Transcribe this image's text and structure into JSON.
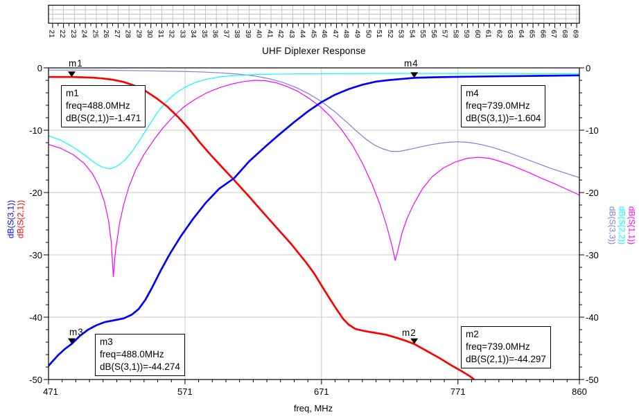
{
  "window": {
    "title": "UHF Diplexer Response"
  },
  "channel_ruler": {
    "channels": [
      "21",
      "22",
      "23",
      "24",
      "25",
      "26",
      "27",
      "28",
      "29",
      "30",
      "31",
      "32",
      "33",
      "34",
      "35",
      "36",
      "37",
      "38",
      "39",
      "40",
      "41",
      "42",
      "43",
      "44",
      "45",
      "46",
      "47",
      "48",
      "49",
      "50",
      "51",
      "52",
      "53",
      "54",
      "55",
      "56",
      "57",
      "58",
      "59",
      "60",
      "61",
      "62",
      "63",
      "64",
      "65",
      "66",
      "67",
      "68",
      "69"
    ]
  },
  "chart_data": {
    "type": "line",
    "title": "UHF Diplexer Response",
    "xlabel": "freq, MHz",
    "ylabel_left": [
      "dB(S(3,1))",
      "dB(S(2,1))"
    ],
    "ylabel_right": [
      "dB(S(3,3))",
      "dB(S(2,2))",
      "dB(S(1,1))"
    ],
    "xlim": [
      471,
      860
    ],
    "ylim": [
      -50,
      0
    ],
    "x_ticks": [
      471,
      571,
      671,
      771,
      860
    ],
    "x_tick_labels": [
      "471",
      "571",
      "671",
      "771",
      "860"
    ],
    "x_minor_step": 10,
    "y_ticks": [
      0,
      -10,
      -20,
      -30,
      -40,
      -50
    ],
    "y_tick_labels": [
      "0",
      "-10",
      "-20",
      "-30",
      "-40",
      "-50"
    ],
    "y_minor_step": 2,
    "grid": true,
    "grid_color": "#C8C8C8",
    "axis_color": "#000000",
    "left_axis_labels": [
      {
        "text": "dB(S(3,1))",
        "color": "#0000FF"
      },
      {
        "text": "dB(S(2,1))",
        "color": "#FF0000"
      }
    ],
    "right_axis_labels": [
      {
        "text": "dB(S(3,3))",
        "color": "#7D7DE0"
      },
      {
        "text": "dB(S(2,2))",
        "color": "#00FFFF"
      },
      {
        "text": "dB(S(1,1))",
        "color": "#FF00FF"
      }
    ],
    "series": [
      {
        "name": "dB(S(3,3))",
        "color": "#7D7DE0",
        "width": 1.2,
        "points": [
          [
            471,
            -0.35
          ],
          [
            495,
            -0.35
          ],
          [
            520,
            -0.4
          ],
          [
            545,
            -0.48
          ],
          [
            565,
            -0.55
          ],
          [
            582,
            -0.65
          ],
          [
            597,
            -0.8
          ],
          [
            610,
            -1.0
          ],
          [
            622,
            -1.3
          ],
          [
            633,
            -1.75
          ],
          [
            643,
            -2.35
          ],
          [
            653,
            -3.2
          ],
          [
            662,
            -4.2
          ],
          [
            671,
            -5.4
          ],
          [
            680,
            -6.9
          ],
          [
            689,
            -8.6
          ],
          [
            697,
            -10.2
          ],
          [
            704,
            -11.5
          ],
          [
            710,
            -12.4
          ],
          [
            716,
            -13.0
          ],
          [
            722,
            -13.4
          ],
          [
            728,
            -13.4
          ],
          [
            735,
            -13.1
          ],
          [
            743,
            -12.7
          ],
          [
            752,
            -12.3
          ],
          [
            761,
            -12.0
          ],
          [
            770,
            -11.85
          ],
          [
            779,
            -11.95
          ],
          [
            788,
            -12.3
          ],
          [
            797,
            -12.8
          ],
          [
            807,
            -13.5
          ],
          [
            818,
            -14.4
          ],
          [
            829,
            -15.3
          ],
          [
            840,
            -16.2
          ],
          [
            850,
            -16.9
          ],
          [
            860,
            -17.6
          ]
        ]
      },
      {
        "name": "dB(S(2,2))",
        "color": "#00FFFF",
        "width": 1.2,
        "points": [
          [
            471,
            -10.9
          ],
          [
            480,
            -11.6
          ],
          [
            489,
            -12.7
          ],
          [
            497,
            -13.9
          ],
          [
            504,
            -15.1
          ],
          [
            510,
            -15.9
          ],
          [
            516,
            -16.2
          ],
          [
            521,
            -15.8
          ],
          [
            527,
            -14.8
          ],
          [
            533,
            -13.2
          ],
          [
            539,
            -11.2
          ],
          [
            545,
            -9.1
          ],
          [
            551,
            -7.1
          ],
          [
            557,
            -5.5
          ],
          [
            564,
            -4.1
          ],
          [
            571,
            -3.1
          ],
          [
            579,
            -2.3
          ],
          [
            588,
            -1.75
          ],
          [
            598,
            -1.4
          ],
          [
            610,
            -1.2
          ],
          [
            625,
            -1.05
          ],
          [
            645,
            -0.98
          ],
          [
            675,
            -0.93
          ],
          [
            710,
            -0.9
          ],
          [
            750,
            -0.9
          ],
          [
            800,
            -0.9
          ],
          [
            860,
            -0.95
          ]
        ]
      },
      {
        "name": "dB(S(1,1))",
        "color": "#FF00FF",
        "width": 1.2,
        "points": [
          [
            471,
            -12.3
          ],
          [
            480,
            -12.9
          ],
          [
            489,
            -13.9
          ],
          [
            497,
            -15.3
          ],
          [
            503,
            -16.9
          ],
          [
            508,
            -19.0
          ],
          [
            512,
            -21.5
          ],
          [
            515,
            -24.5
          ],
          [
            517,
            -28.0
          ],
          [
            518.5,
            -33.5
          ],
          [
            520,
            -29.5
          ],
          [
            523,
            -25.0
          ],
          [
            526,
            -22.0
          ],
          [
            530,
            -19.0
          ],
          [
            535,
            -16.3
          ],
          [
            541,
            -13.9
          ],
          [
            548,
            -11.6
          ],
          [
            555,
            -9.6
          ],
          [
            562,
            -7.9
          ],
          [
            570,
            -6.3
          ],
          [
            578,
            -5.1
          ],
          [
            587,
            -4.0
          ],
          [
            596,
            -3.2
          ],
          [
            605,
            -2.6
          ],
          [
            614,
            -2.2
          ],
          [
            622,
            -2.0
          ],
          [
            630,
            -2.05
          ],
          [
            638,
            -2.4
          ],
          [
            646,
            -3.0
          ],
          [
            654,
            -3.8
          ],
          [
            662,
            -4.9
          ],
          [
            670,
            -6.2
          ],
          [
            678,
            -7.9
          ],
          [
            686,
            -10.0
          ],
          [
            694,
            -12.5
          ],
          [
            701,
            -15.3
          ],
          [
            708,
            -18.6
          ],
          [
            714,
            -22.0
          ],
          [
            719,
            -25.5
          ],
          [
            723,
            -28.8
          ],
          [
            725,
            -30.9
          ],
          [
            727,
            -29.3
          ],
          [
            730,
            -26.5
          ],
          [
            734,
            -24.0
          ],
          [
            739,
            -21.7
          ],
          [
            745,
            -19.4
          ],
          [
            752,
            -17.5
          ],
          [
            760,
            -16.1
          ],
          [
            769,
            -15.1
          ],
          [
            778,
            -14.5
          ],
          [
            786,
            -14.35
          ],
          [
            794,
            -14.5
          ],
          [
            802,
            -15.0
          ],
          [
            812,
            -15.8
          ],
          [
            822,
            -16.7
          ],
          [
            832,
            -17.7
          ],
          [
            842,
            -18.6
          ],
          [
            851,
            -19.5
          ],
          [
            860,
            -20.4
          ]
        ]
      },
      {
        "name": "dB(S(2,1))",
        "color": "#FF0000",
        "width": 2.7,
        "points": [
          [
            471,
            -1.47
          ],
          [
            480,
            -1.47
          ],
          [
            488,
            -1.471
          ],
          [
            496,
            -1.51
          ],
          [
            504,
            -1.58
          ],
          [
            511,
            -1.7
          ],
          [
            518,
            -1.9
          ],
          [
            526,
            -2.25
          ],
          [
            534,
            -2.85
          ],
          [
            542,
            -3.7
          ],
          [
            550,
            -4.85
          ],
          [
            558,
            -6.2
          ],
          [
            566,
            -7.9
          ],
          [
            574,
            -9.8
          ],
          [
            582,
            -12.0
          ],
          [
            590,
            -14.0
          ],
          [
            598,
            -15.9
          ],
          [
            607,
            -18.0
          ],
          [
            617,
            -20.4
          ],
          [
            627,
            -22.9
          ],
          [
            638,
            -25.6
          ],
          [
            649,
            -28.3
          ],
          [
            660,
            -31.3
          ],
          [
            666,
            -33.1
          ],
          [
            671,
            -34.9
          ],
          [
            677,
            -37.0
          ],
          [
            682,
            -38.7
          ],
          [
            687,
            -40.3
          ],
          [
            691,
            -41.2
          ],
          [
            696,
            -41.9
          ],
          [
            702,
            -42.2
          ],
          [
            710,
            -42.5
          ],
          [
            718,
            -42.8
          ],
          [
            726,
            -43.3
          ],
          [
            733,
            -43.8
          ],
          [
            739,
            -44.297
          ],
          [
            748,
            -45.4
          ],
          [
            757,
            -46.5
          ],
          [
            766,
            -47.7
          ],
          [
            774,
            -48.7
          ],
          [
            780,
            -49.5
          ],
          [
            784,
            -50.2
          ]
        ]
      },
      {
        "name": "dB(S(3,1))",
        "color": "#0000FF",
        "width": 2.7,
        "points": [
          [
            471,
            -47.8
          ],
          [
            478,
            -46.1
          ],
          [
            483,
            -45.1
          ],
          [
            488,
            -44.274
          ],
          [
            494,
            -43.0
          ],
          [
            500,
            -42.0
          ],
          [
            506,
            -41.3
          ],
          [
            512,
            -40.8
          ],
          [
            519,
            -40.5
          ],
          [
            526,
            -40.2
          ],
          [
            532,
            -39.6
          ],
          [
            537,
            -38.7
          ],
          [
            542,
            -37.2
          ],
          [
            547,
            -35.2
          ],
          [
            553,
            -32.6
          ],
          [
            560,
            -29.8
          ],
          [
            568,
            -27.0
          ],
          [
            577,
            -24.2
          ],
          [
            586,
            -21.7
          ],
          [
            596,
            -19.4
          ],
          [
            607,
            -17.7
          ],
          [
            618,
            -15.0
          ],
          [
            629,
            -12.8
          ],
          [
            640,
            -10.7
          ],
          [
            651,
            -8.7
          ],
          [
            661,
            -7.0
          ],
          [
            671,
            -5.5
          ],
          [
            681,
            -4.3
          ],
          [
            691,
            -3.4
          ],
          [
            701,
            -2.7
          ],
          [
            711,
            -2.2
          ],
          [
            721,
            -1.95
          ],
          [
            731,
            -1.75
          ],
          [
            739,
            -1.604
          ],
          [
            755,
            -1.5
          ],
          [
            775,
            -1.42
          ],
          [
            800,
            -1.35
          ],
          [
            830,
            -1.28
          ],
          [
            860,
            -1.2
          ]
        ]
      }
    ],
    "markers": [
      {
        "id": "m1",
        "freq_mhz": 488.0,
        "db": -1.471,
        "trace": "dB(S(2,1))",
        "lines": [
          "m1",
          "freq=488.0MHz",
          "dB(S(2,1))=-1.471"
        ]
      },
      {
        "id": "m2",
        "freq_mhz": 739.0,
        "db": -44.297,
        "trace": "dB(S(2,1))",
        "lines": [
          "m2",
          "freq=739.0MHz",
          "dB(S(2,1))=-44.297"
        ]
      },
      {
        "id": "m3",
        "freq_mhz": 488.0,
        "db": -44.274,
        "trace": "dB(S(3,1))",
        "lines": [
          "m3",
          "freq=488.0MHz",
          "dB(S(3,1))=-44.274"
        ]
      },
      {
        "id": "m4",
        "freq_mhz": 739.0,
        "db": -1.604,
        "trace": "dB(S(3,1))",
        "lines": [
          "m4",
          "freq=739.0MHz",
          "dB(S(3,1))=-1.604"
        ]
      }
    ]
  }
}
